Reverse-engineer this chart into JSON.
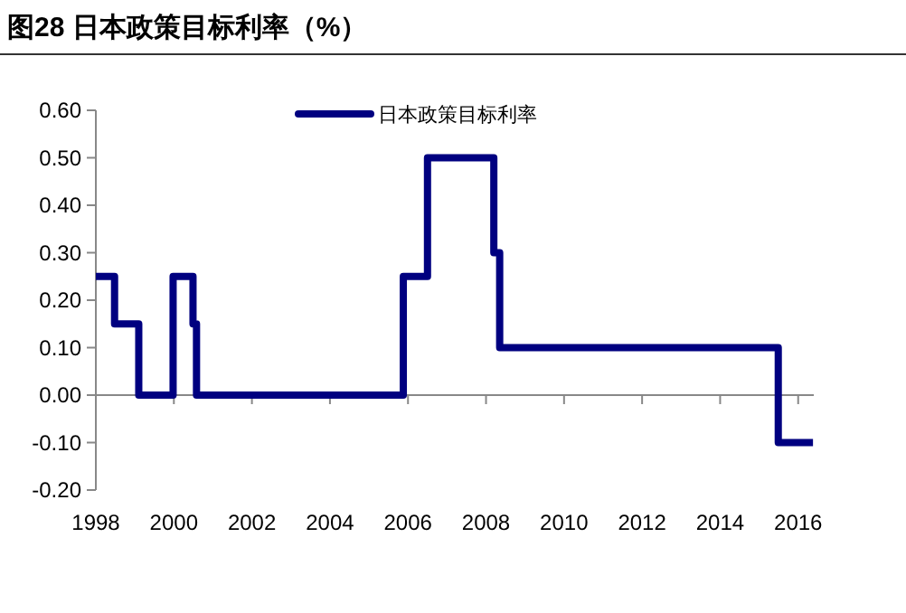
{
  "chart_data": {
    "type": "step",
    "title": "图28 日本政策目标利率（%）",
    "series": [
      {
        "name": "日本政策目标利率",
        "color": "#000080",
        "x": [
          1998,
          1998.48,
          1999.1,
          1999.98,
          2000.49,
          2000.58,
          2005.88,
          2006.5,
          2008.2,
          2008.35,
          2015.49,
          2016.38
        ],
        "values": [
          0.25,
          0.15,
          0,
          0.25,
          0.15,
          0,
          0.25,
          0.5,
          0.3,
          0.1,
          -0.1,
          -0.1
        ]
      }
    ],
    "xlim": [
      1998,
      2016.4
    ],
    "xticks": [
      1998,
      2000,
      2002,
      2004,
      2006,
      2008,
      2010,
      2012,
      2014,
      2016
    ],
    "ylim": [
      -0.2,
      0.6
    ],
    "yticks": [
      {
        "value": -0.2,
        "label": "-0.20"
      },
      {
        "value": -0.1,
        "label": "-0.10"
      },
      {
        "value": 0,
        "label": "0.00"
      },
      {
        "value": 0.1,
        "label": "0.10"
      },
      {
        "value": 0.2,
        "label": "0.20"
      },
      {
        "value": 0.3,
        "label": "0.30"
      },
      {
        "value": 0.4,
        "label": "0.40"
      },
      {
        "value": 0.5,
        "label": "0.50"
      },
      {
        "value": 0.6,
        "label": "0.60"
      }
    ],
    "legend": "top"
  }
}
